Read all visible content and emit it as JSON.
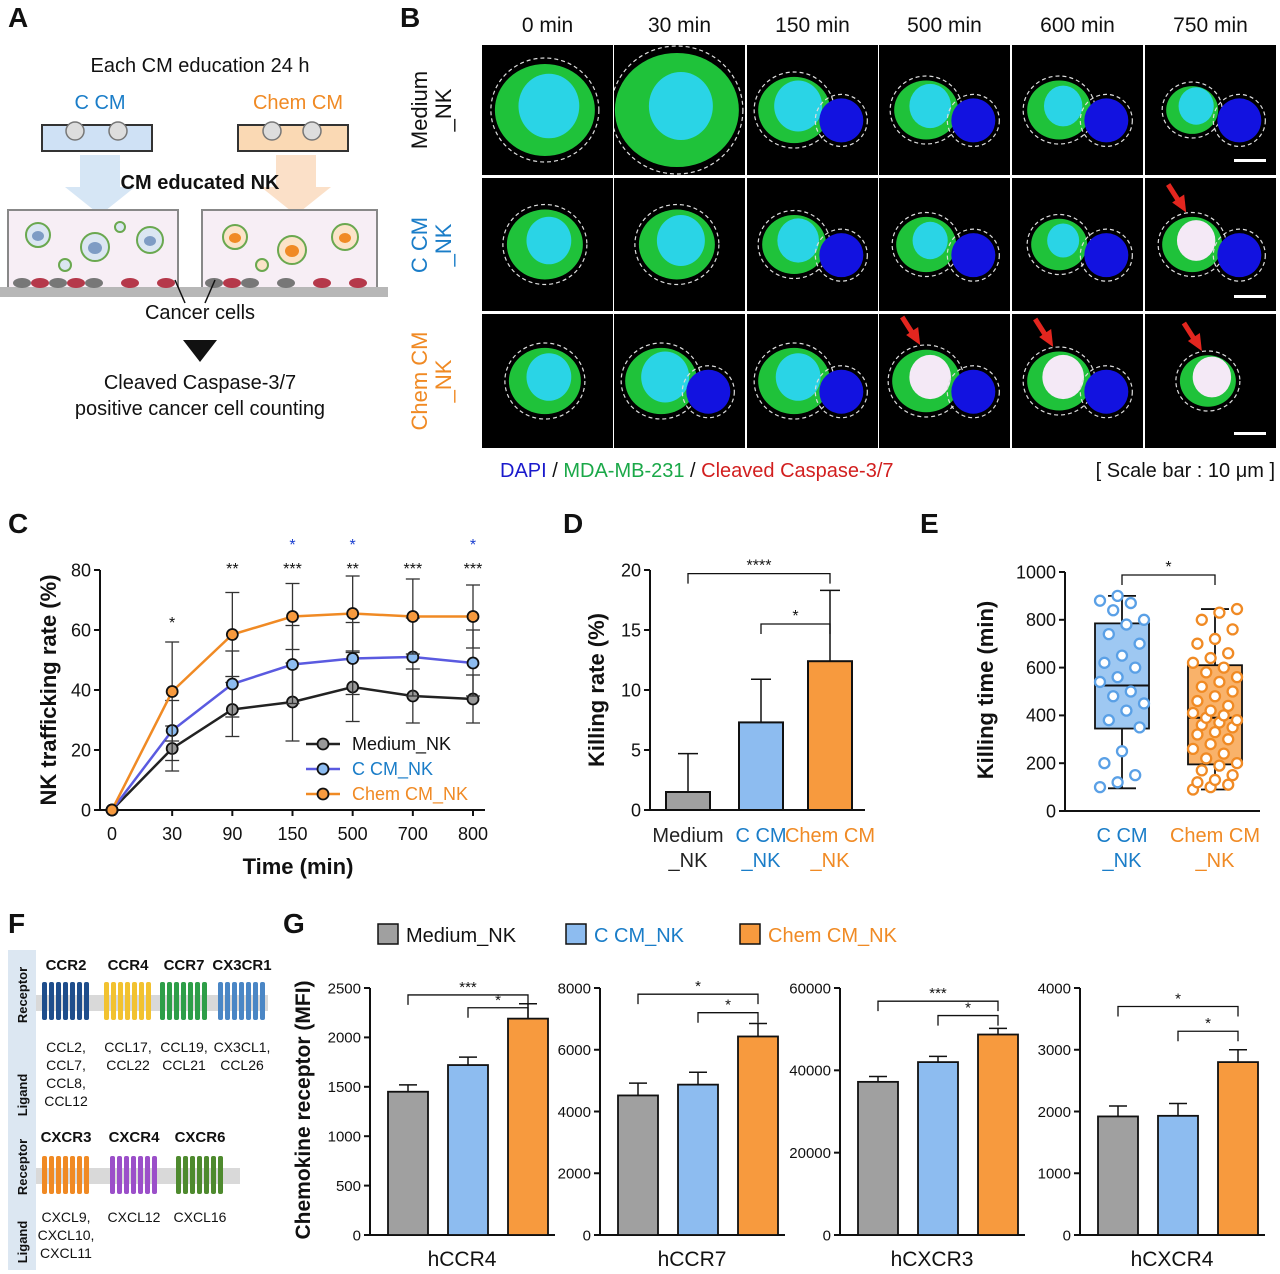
{
  "labels": {
    "A": "A",
    "B": "B",
    "C": "C",
    "D": "D",
    "E": "E",
    "F": "F",
    "G": "G"
  },
  "panelA": {
    "title": "Each CM education 24 h",
    "c_cm": "C CM",
    "chem_cm": "Chem CM",
    "cm_educated": "CM educated NK",
    "cancer_cells": "Cancer cells",
    "result_line1": "Cleaved Caspase-3/7",
    "result_line2": "positive cancer cell counting"
  },
  "panelB": {
    "times": [
      "0 min",
      "30 min",
      "150 min",
      "500 min",
      "600 min",
      "750 min"
    ],
    "rows": [
      {
        "line1": "Medium",
        "line2": "_NK",
        "color": "#111111"
      },
      {
        "line1": "C CM",
        "line2": "_NK",
        "color": "#1a7dc8"
      },
      {
        "line1": "Chem CM",
        "line2": "_NK",
        "color": "#f08a24"
      }
    ],
    "legend_dapi": "DAPI",
    "legend_sep": " / ",
    "legend_mda": "MDA-MB-231",
    "legend_casp": "Cleaved Caspase-3/7",
    "scale_bar": "[ Scale bar : 10 μm ]"
  },
  "panelF": {
    "receptor_label": "Receptor",
    "ligand_label": "Ligand",
    "top": [
      {
        "name": "CCR2",
        "color": "#1f4e8c",
        "ligands": [
          "CCL2,",
          "CCL7,",
          "CCL8,",
          "CCL12"
        ]
      },
      {
        "name": "CCR4",
        "color": "#f2c230",
        "ligands": [
          "CCL17,",
          "CCL22"
        ]
      },
      {
        "name": "CCR7",
        "color": "#2e9e48",
        "ligands": [
          "CCL19,",
          "CCL21"
        ]
      },
      {
        "name": "CX3CR1",
        "color": "#4a86c5",
        "ligands": [
          "CX3CL1,",
          "CCL26"
        ]
      }
    ],
    "bottom": [
      {
        "name": "CXCR3",
        "color": "#f08a24",
        "ligands": [
          "CXCL9,",
          "CXCL10,",
          "CXCL11"
        ]
      },
      {
        "name": "CXCR4",
        "color": "#9b4fc9",
        "ligands": [
          "CXCL12"
        ]
      },
      {
        "name": "CXCR6",
        "color": "#4e8a2e",
        "ligands": [
          "CXCL16"
        ]
      }
    ]
  },
  "chart_data": [
    {
      "id": "C",
      "type": "line",
      "xlabel": "Time (min)",
      "ylabel": "NK trafficking rate (%)",
      "categories": [
        "0",
        "30",
        "90",
        "150",
        "500",
        "700",
        "800"
      ],
      "ylim": [
        0,
        80
      ],
      "yticks": [
        0,
        20,
        40,
        60,
        80
      ],
      "series": [
        {
          "name": "Medium_NK",
          "color": "#222222",
          "values": [
            0,
            20.5,
            33.5,
            36,
            41,
            38,
            37
          ],
          "err": [
            0,
            7.5,
            9,
            13,
            11.5,
            9,
            8
          ]
        },
        {
          "name": "C CM_NK",
          "color": "#5a5ae0",
          "values": [
            0,
            26.5,
            42,
            48.5,
            50.5,
            51,
            49
          ],
          "err": [
            0,
            10,
            11,
            13,
            12,
            13,
            11
          ]
        },
        {
          "name": "Chem CM_NK",
          "color": "#f08a24",
          "values": [
            0,
            39.5,
            58.5,
            64.5,
            65.5,
            64.5,
            64.5
          ],
          "err": [
            0,
            16.5,
            14,
            11,
            12.5,
            12.5,
            10.5
          ]
        }
      ],
      "sig_black": [
        "",
        "*",
        "**",
        "***",
        "**",
        "***",
        "***"
      ],
      "sig_blue": [
        "",
        "",
        "",
        "*",
        "*",
        "",
        "*"
      ],
      "legend_position": "bottom-right"
    },
    {
      "id": "D",
      "type": "bar",
      "ylabel": "Killing rate (%)",
      "categories": [
        [
          "Medium",
          "_NK"
        ],
        [
          "C CM",
          "_NK"
        ],
        [
          "Chem CM",
          "_NK"
        ]
      ],
      "category_colors": [
        "#222222",
        "#1a7dc8",
        "#f08a24"
      ],
      "bar_colors": [
        "#a0a0a0",
        "#8dbcf0",
        "#f79a3e"
      ],
      "values": [
        1.5,
        7.3,
        12.4
      ],
      "err": [
        3.2,
        3.6,
        5.9
      ],
      "ylim": [
        0,
        20
      ],
      "yticks": [
        0,
        5,
        10,
        15,
        20
      ],
      "brackets": [
        {
          "from": 0,
          "to": 2,
          "label": "****",
          "y": 19.7
        },
        {
          "from": 1,
          "to": 2,
          "label": "*",
          "y": 15.5
        }
      ]
    },
    {
      "id": "E",
      "type": "box",
      "ylabel": "Killing time (min)",
      "categories": [
        [
          "C CM",
          "_NK"
        ],
        [
          "Chem CM",
          "_NK"
        ]
      ],
      "category_colors": [
        "#1a7dc8",
        "#f08a24"
      ],
      "fill_colors": [
        "#9ec8f2",
        "#f9b26a"
      ],
      "point_colors": [
        "#5aa0e6",
        "#f08a24"
      ],
      "ylim": [
        0,
        1000
      ],
      "yticks": [
        0,
        200,
        400,
        600,
        800,
        1000
      ],
      "boxes": [
        {
          "min": 95,
          "q1": 345,
          "median": 525,
          "q3": 785,
          "max": 900
        },
        {
          "min": 90,
          "q1": 195,
          "median": 390,
          "q3": 610,
          "max": 845
        }
      ],
      "points": [
        [
          100,
          120,
          150,
          200,
          250,
          350,
          380,
          420,
          450,
          480,
          500,
          540,
          560,
          600,
          620,
          650,
          700,
          740,
          780,
          800,
          840,
          870,
          880,
          900
        ],
        [
          90,
          100,
          110,
          120,
          130,
          150,
          170,
          190,
          200,
          220,
          240,
          260,
          280,
          300,
          320,
          330,
          350,
          360,
          370,
          380,
          390,
          400,
          410,
          420,
          440,
          460,
          480,
          500,
          520,
          540,
          560,
          580,
          600,
          620,
          640,
          660,
          700,
          720,
          760,
          800,
          830,
          845
        ]
      ],
      "brackets": [
        {
          "from": 0,
          "to": 1,
          "label": "*",
          "y": 1000
        }
      ]
    },
    {
      "id": "G",
      "type": "bar",
      "ylabel": "Chemokine receptor  (MFI)",
      "legend": [
        {
          "name": "Medium_NK",
          "color": "#a0a0a0",
          "text_color": "#111111"
        },
        {
          "name": "C CM_NK",
          "color": "#8dbcf0",
          "text_color": "#1a7dc8"
        },
        {
          "name": "Chem CM_NK",
          "color": "#f79a3e",
          "text_color": "#f08a24"
        }
      ],
      "legend_position": "top",
      "subplots": [
        {
          "xlabel": "hCCR4",
          "ylim": [
            0,
            2500
          ],
          "yticks": [
            0,
            500,
            1000,
            1500,
            2000,
            2500
          ],
          "values": [
            1450,
            1720,
            2190
          ],
          "err": [
            70,
            80,
            150
          ],
          "brackets": [
            {
              "from": 0,
              "to": 2,
              "label": "***",
              "y": 2430
            },
            {
              "from": 1,
              "to": 2,
              "label": "*",
              "y": 2300
            }
          ]
        },
        {
          "xlabel": "hCCR7",
          "ylim": [
            0,
            8000
          ],
          "yticks": [
            0,
            2000,
            4000,
            6000,
            8000
          ],
          "values": [
            4520,
            4870,
            6430
          ],
          "err": [
            400,
            400,
            420
          ],
          "brackets": [
            {
              "from": 0,
              "to": 2,
              "label": "*",
              "y": 7800
            },
            {
              "from": 1,
              "to": 2,
              "label": "*",
              "y": 7200
            }
          ]
        },
        {
          "xlabel": "hCXCR3",
          "ylim": [
            0,
            60000
          ],
          "yticks": [
            0,
            20000,
            40000,
            60000
          ],
          "values": [
            37200,
            42000,
            48700
          ],
          "err": [
            1300,
            1400,
            1500
          ],
          "brackets": [
            {
              "from": 0,
              "to": 2,
              "label": "***",
              "y": 56800
            },
            {
              "from": 1,
              "to": 2,
              "label": "*",
              "y": 53300
            }
          ]
        },
        {
          "xlabel": "hCXCR4",
          "ylim": [
            0,
            4000
          ],
          "yticks": [
            0,
            1000,
            2000,
            3000,
            4000
          ],
          "values": [
            1920,
            1930,
            2800
          ],
          "err": [
            170,
            200,
            200
          ],
          "brackets": [
            {
              "from": 0,
              "to": 2,
              "label": "*",
              "y": 3700
            },
            {
              "from": 1,
              "to": 2,
              "label": "*",
              "y": 3300
            }
          ]
        }
      ]
    }
  ]
}
